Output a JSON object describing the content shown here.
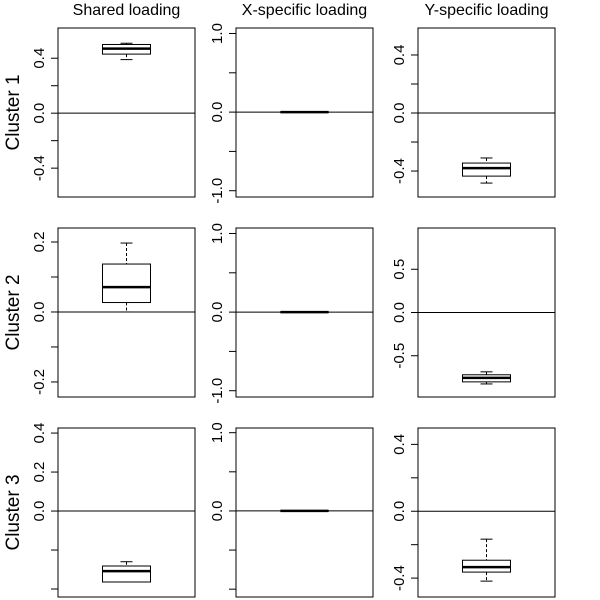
{
  "chart_data": [
    {
      "type": "box",
      "title": "Shared loading",
      "ylabel": "Cluster 1",
      "ylim": [
        -0.61,
        0.62
      ],
      "yticks": [
        0.4,
        {
          "value": 0,
          "label": "0.0"
        },
        -0.4
      ],
      "minor_yticks": [
        0.2,
        -0.2
      ],
      "hline": 0,
      "box": {
        "whislo": 0.39,
        "q1": 0.43,
        "med": 0.47,
        "q3": 0.5,
        "whishi": 0.509
      }
    },
    {
      "type": "box",
      "title": "X-specific loading",
      "ylim": [
        -1.08,
        1.07
      ],
      "yticks": [
        {
          "value": 1,
          "label": "1.0"
        },
        {
          "value": 0,
          "label": "0.0"
        },
        {
          "value": -1,
          "label": "-1.0"
        }
      ],
      "minor_yticks": [
        0.5,
        -0.5
      ],
      "hline": 0,
      "box": {
        "whislo": -0.005,
        "q1": -0.002,
        "med": 0,
        "q3": 0.002,
        "whishi": 0.005
      }
    },
    {
      "type": "box",
      "title": "Y-specific loading",
      "ylim": [
        -0.579,
        0.586
      ],
      "yticks": [
        0.4,
        {
          "value": 0,
          "label": "0.0"
        },
        -0.4
      ],
      "minor_yticks": [
        0.2,
        -0.2
      ],
      "hline": 0,
      "box": {
        "whislo": -0.483,
        "q1": -0.435,
        "med": -0.38,
        "q3": -0.345,
        "whishi": -0.31
      }
    },
    {
      "type": "box",
      "ylabel": "Cluster 2",
      "ylim": [
        -0.243,
        0.24
      ],
      "yticks": [
        0.2,
        {
          "value": 0,
          "label": "0.0"
        },
        -0.2
      ],
      "minor_yticks": [
        0.1,
        -0.1
      ],
      "hline": 0,
      "box": {
        "whislo": 0,
        "q1": 0.027,
        "med": 0.071,
        "q3": 0.137,
        "whishi": 0.197
      }
    },
    {
      "type": "box",
      "ylim": [
        -1.08,
        1.07
      ],
      "yticks": [
        {
          "value": 1,
          "label": "1.0"
        },
        {
          "value": 0,
          "label": "0.0"
        },
        {
          "value": -1,
          "label": "-1.0"
        }
      ],
      "minor_yticks": [
        0.5,
        -0.5
      ],
      "hline": 0,
      "box": {
        "whislo": -0.005,
        "q1": -0.002,
        "med": 0,
        "q3": 0.002,
        "whishi": 0.005
      }
    },
    {
      "type": "box",
      "ylim": [
        -0.977,
        0.977
      ],
      "yticks": [
        0.5,
        {
          "value": 0,
          "label": "0.0"
        },
        -0.5
      ],
      "minor_yticks": [],
      "hline": 0,
      "box": {
        "whislo": -0.826,
        "q1": -0.802,
        "med": -0.756,
        "q3": -0.72,
        "whishi": -0.686
      }
    },
    {
      "type": "box",
      "ylabel": "Cluster 3",
      "ylim": [
        -0.441,
        0.426
      ],
      "yticks": [
        0.4,
        0.2,
        {
          "value": 0,
          "label": "0.0"
        }
      ],
      "minor_yticks": [
        -0.2,
        -0.4
      ],
      "hline": 0,
      "box": {
        "whislo": -0.364,
        "q1": -0.364,
        "med": -0.308,
        "q3": -0.282,
        "whishi": -0.26
      }
    },
    {
      "type": "box",
      "ylim": [
        -1.1,
        1.06
      ],
      "yticks": [
        {
          "value": 1,
          "label": "1.0"
        },
        {
          "value": 0,
          "label": "0.0"
        }
      ],
      "minor_yticks": [
        0.5,
        -0.5,
        -1
      ],
      "hline": 0,
      "box": {
        "whislo": -0.005,
        "q1": -0.002,
        "med": 0,
        "q3": 0.002,
        "whishi": 0.005
      }
    },
    {
      "type": "box",
      "ylim": [
        -0.513,
        0.498
      ],
      "yticks": [
        0.4,
        {
          "value": 0,
          "label": "0.0"
        },
        -0.4
      ],
      "minor_yticks": [
        0.2,
        -0.2
      ],
      "hline": 0,
      "box": {
        "whislo": -0.418,
        "q1": -0.364,
        "med": -0.334,
        "q3": -0.293,
        "whishi": -0.167
      }
    }
  ]
}
